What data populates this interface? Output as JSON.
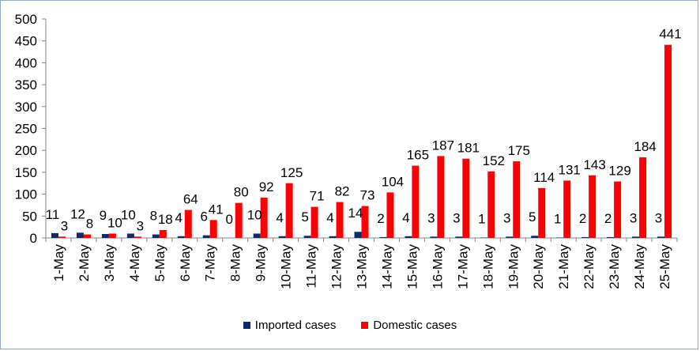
{
  "chart_data": {
    "type": "bar",
    "title": "",
    "xlabel": "",
    "ylabel": "",
    "ylim": [
      0,
      500
    ],
    "yticks": [
      0,
      50,
      100,
      150,
      200,
      250,
      300,
      350,
      400,
      450,
      500
    ],
    "grid": false,
    "legend_position": "bottom",
    "categories": [
      "1-May",
      "2-May",
      "3-May",
      "4-May",
      "5-May",
      "6-May",
      "7-May",
      "8-May",
      "9-May",
      "10-May",
      "11-May",
      "12-May",
      "13-May",
      "14-May",
      "15-May",
      "16-May",
      "17-May",
      "18-May",
      "19-May",
      "20-May",
      "21-May",
      "22-May",
      "23-May",
      "24-May",
      "25-May"
    ],
    "series": [
      {
        "name": "Imported cases",
        "color": "#0d2b6b",
        "values": [
          11,
          12,
          9,
          10,
          8,
          4,
          6,
          0,
          10,
          4,
          5,
          4,
          14,
          2,
          4,
          3,
          3,
          1,
          3,
          5,
          1,
          2,
          2,
          3,
          3
        ]
      },
      {
        "name": "Domestic cases",
        "color": "#ff0000",
        "values": [
          3,
          8,
          10,
          3,
          18,
          64,
          41,
          80,
          92,
          125,
          71,
          82,
          73,
          104,
          165,
          187,
          181,
          152,
          175,
          114,
          131,
          143,
          129,
          184,
          441
        ]
      }
    ]
  }
}
